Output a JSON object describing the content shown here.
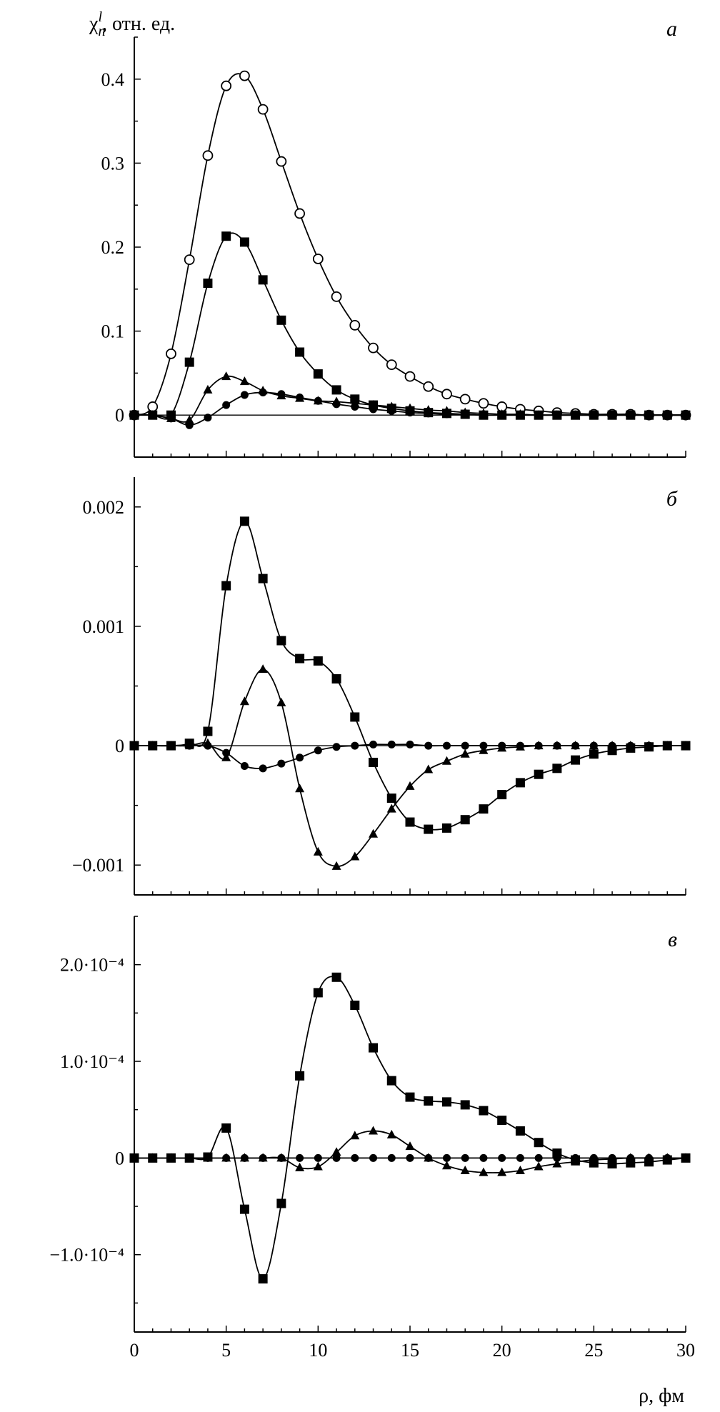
{
  "chart_data": [
    {
      "panel": "a",
      "type": "line",
      "ylabel": "χ_n^l, отн. ед.",
      "ylabel_parts": {
        "symbol": "χ",
        "sup": "l",
        "sub": "n",
        "rest": ", отн. ед."
      },
      "xlabel": "",
      "xlim": [
        0,
        30
      ],
      "ylim": [
        -0.05,
        0.45
      ],
      "ytick_values": [
        0,
        0.1,
        0.2,
        0.3,
        0.4
      ],
      "ytick_labels": [
        "0",
        "0.1",
        "0.2",
        "0.3",
        "0.4"
      ],
      "xtick_labels": [],
      "zero_line": true,
      "series": [
        {
          "marker": "open-circle",
          "x": [
            0,
            1,
            2,
            3,
            4,
            5,
            6,
            7,
            8,
            9,
            10,
            11,
            12,
            13,
            14,
            15,
            16,
            17,
            18,
            19,
            20,
            21,
            22,
            23,
            24,
            25,
            26,
            27,
            28,
            29,
            30
          ],
          "values": [
            0,
            0.01,
            0.073,
            0.185,
            0.309,
            0.392,
            0.404,
            0.364,
            0.302,
            0.24,
            0.186,
            0.141,
            0.107,
            0.08,
            0.06,
            0.046,
            0.034,
            0.025,
            0.019,
            0.014,
            0.01,
            0.007,
            0.005,
            0.003,
            0.002,
            0.001,
            0.001,
            0.001,
            0,
            0,
            0
          ]
        },
        {
          "marker": "filled-square",
          "x": [
            0,
            1,
            2,
            3,
            4,
            5,
            6,
            7,
            8,
            9,
            10,
            11,
            12,
            13,
            14,
            15,
            16,
            17,
            18,
            19,
            20,
            21,
            22,
            23,
            24,
            25,
            26,
            27,
            28,
            29,
            30
          ],
          "values": [
            0,
            0,
            0,
            0.063,
            0.157,
            0.213,
            0.206,
            0.161,
            0.113,
            0.075,
            0.049,
            0.03,
            0.019,
            0.012,
            0.008,
            0.005,
            0.003,
            0.002,
            0.001,
            0,
            0,
            0,
            0,
            0,
            0,
            0,
            0,
            0,
            0,
            0,
            0
          ]
        },
        {
          "marker": "filled-triangle",
          "x": [
            0,
            1,
            2,
            3,
            4,
            5,
            6,
            7,
            8,
            9,
            10,
            11,
            12,
            13,
            14,
            15,
            16,
            17,
            18,
            19,
            20,
            21,
            22,
            23,
            24,
            25,
            26,
            27,
            28,
            29,
            30
          ],
          "values": [
            0,
            0,
            -0.004,
            -0.006,
            0.03,
            0.046,
            0.04,
            0.029,
            0.023,
            0.02,
            0.017,
            0.016,
            0.014,
            0.012,
            0.01,
            0.008,
            0.006,
            0.005,
            0.003,
            0.002,
            0.001,
            0.001,
            0,
            0,
            0,
            0,
            0,
            0,
            0,
            0,
            0
          ]
        },
        {
          "marker": "filled-circle",
          "x": [
            0,
            1,
            2,
            3,
            4,
            5,
            6,
            7,
            8,
            9,
            10,
            11,
            12,
            13,
            14,
            15,
            16,
            17,
            18,
            19,
            20,
            21,
            22,
            23,
            24,
            25,
            26,
            27,
            28,
            29,
            30
          ],
          "values": [
            0,
            0,
            -0.004,
            -0.012,
            -0.003,
            0.012,
            0.024,
            0.027,
            0.025,
            0.021,
            0.017,
            0.013,
            0.01,
            0.007,
            0.005,
            0.003,
            0.002,
            0.001,
            0.001,
            0,
            0,
            0,
            0,
            0,
            0,
            0,
            0,
            0,
            0,
            0,
            0
          ]
        }
      ]
    },
    {
      "panel": "б",
      "type": "line",
      "xlabel": "",
      "ylabel": "",
      "xlim": [
        0,
        30
      ],
      "ylim": [
        -0.00125,
        0.00225
      ],
      "ytick_values": [
        0.002,
        0.001,
        0,
        -0.001
      ],
      "ytick_labels": [
        "0.002",
        "0.001",
        "0",
        "−0.001"
      ],
      "xtick_labels": [],
      "zero_line": true,
      "series": [
        {
          "marker": "filled-square",
          "x": [
            0,
            1,
            2,
            3,
            4,
            5,
            6,
            7,
            8,
            9,
            10,
            11,
            12,
            13,
            14,
            15,
            16,
            17,
            18,
            19,
            20,
            21,
            22,
            23,
            24,
            25,
            26,
            27,
            28,
            29,
            30
          ],
          "values": [
            0,
            0,
            0,
            2e-05,
            0.00012,
            0.00134,
            0.00188,
            0.0014,
            0.00088,
            0.00073,
            0.00071,
            0.00056,
            0.00024,
            -0.00014,
            -0.00044,
            -0.00064,
            -0.0007,
            -0.00069,
            -0.00062,
            -0.00053,
            -0.00041,
            -0.00031,
            -0.00024,
            -0.00019,
            -0.00012,
            -7e-05,
            -4e-05,
            -2e-05,
            -1e-05,
            0,
            0
          ]
        },
        {
          "marker": "filled-triangle",
          "x": [
            0,
            1,
            2,
            3,
            4,
            5,
            6,
            7,
            8,
            9,
            10,
            11,
            12,
            13,
            14,
            15,
            16,
            17,
            18,
            19,
            20,
            21,
            22,
            23,
            24,
            25,
            26,
            27,
            28,
            29,
            30
          ],
          "values": [
            0,
            0,
            0,
            0,
            2e-05,
            -0.0001,
            0.00037,
            0.00064,
            0.00036,
            -0.00036,
            -0.00089,
            -0.00101,
            -0.00093,
            -0.00074,
            -0.00053,
            -0.00034,
            -0.0002,
            -0.00013,
            -7e-05,
            -4e-05,
            -2e-05,
            -1e-05,
            0,
            0,
            0,
            0,
            0,
            0,
            0,
            0,
            0
          ]
        },
        {
          "marker": "filled-circle",
          "x": [
            0,
            1,
            2,
            3,
            4,
            5,
            6,
            7,
            8,
            9,
            10,
            11,
            12,
            13,
            14,
            15,
            16,
            17,
            18,
            19,
            20,
            21,
            22,
            23,
            24,
            25,
            26,
            27,
            28,
            29,
            30
          ],
          "values": [
            0,
            0,
            0,
            0,
            0,
            -6e-05,
            -0.00017,
            -0.00019,
            -0.00015,
            -0.0001,
            -4e-05,
            -1e-05,
            0,
            1e-05,
            1e-05,
            1e-05,
            0,
            0,
            0,
            0,
            0,
            0,
            0,
            0,
            0,
            0,
            0,
            0,
            0,
            0,
            0
          ]
        }
      ]
    },
    {
      "panel": "в",
      "type": "line",
      "xlabel": "ρ, фм",
      "ylabel": "",
      "xlim": [
        0,
        30
      ],
      "ylim": [
        -0.00018,
        0.00025
      ],
      "ytick_values": [
        0.0002,
        0.0001,
        0,
        -0.0001
      ],
      "ytick_labels": [
        "2.0·10⁻⁴",
        "1.0·10⁻⁴",
        "0",
        "−1.0·10⁻⁴"
      ],
      "xtick_values": [
        0,
        5,
        10,
        15,
        20,
        25,
        30
      ],
      "xtick_labels": [
        "0",
        "5",
        "10",
        "15",
        "20",
        "25",
        "30"
      ],
      "zero_line": false,
      "series": [
        {
          "marker": "filled-square",
          "x": [
            0,
            1,
            2,
            3,
            4,
            5,
            6,
            7,
            8,
            9,
            10,
            11,
            12,
            13,
            14,
            15,
            16,
            17,
            18,
            19,
            20,
            21,
            22,
            23,
            24,
            25,
            26,
            27,
            28,
            29,
            30
          ],
          "values": [
            0,
            0,
            0,
            0,
            1e-06,
            3.1e-05,
            -5.3e-05,
            -0.000125,
            -4.7e-05,
            8.5e-05,
            0.000171,
            0.000187,
            0.000158,
            0.000114,
            8e-05,
            6.3e-05,
            5.9e-05,
            5.8e-05,
            5.5e-05,
            4.9e-05,
            3.9e-05,
            2.8e-05,
            1.6e-05,
            5e-06,
            -2e-06,
            -5e-06,
            -6e-06,
            -5e-06,
            -4e-06,
            -2e-06,
            0
          ]
        },
        {
          "marker": "filled-triangle",
          "x": [
            0,
            1,
            2,
            3,
            4,
            5,
            6,
            7,
            8,
            9,
            10,
            11,
            12,
            13,
            14,
            15,
            16,
            17,
            18,
            19,
            20,
            21,
            22,
            23,
            24,
            25,
            26,
            27,
            28,
            29,
            30
          ],
          "values": [
            0,
            0,
            0,
            0,
            0,
            0,
            0,
            0,
            0,
            -1e-05,
            -9e-06,
            6e-06,
            2.3e-05,
            2.8e-05,
            2.4e-05,
            1.2e-05,
            0,
            -8e-06,
            -1.3e-05,
            -1.5e-05,
            -1.5e-05,
            -1.3e-05,
            -9e-06,
            -6e-06,
            -4e-06,
            -2e-06,
            -1e-06,
            0,
            0,
            0,
            0
          ]
        },
        {
          "marker": "filled-circle",
          "x": [
            0,
            1,
            2,
            3,
            4,
            5,
            6,
            7,
            8,
            9,
            10,
            11,
            12,
            13,
            14,
            15,
            16,
            17,
            18,
            19,
            20,
            21,
            22,
            23,
            24,
            25,
            26,
            27,
            28,
            29,
            30
          ],
          "values": [
            0,
            0,
            0,
            0,
            0,
            0,
            0,
            0,
            0,
            0,
            0,
            0,
            0,
            0,
            0,
            0,
            0,
            0,
            0,
            0,
            0,
            0,
            0,
            0,
            0,
            0,
            0,
            0,
            0,
            0,
            0
          ]
        }
      ]
    }
  ]
}
